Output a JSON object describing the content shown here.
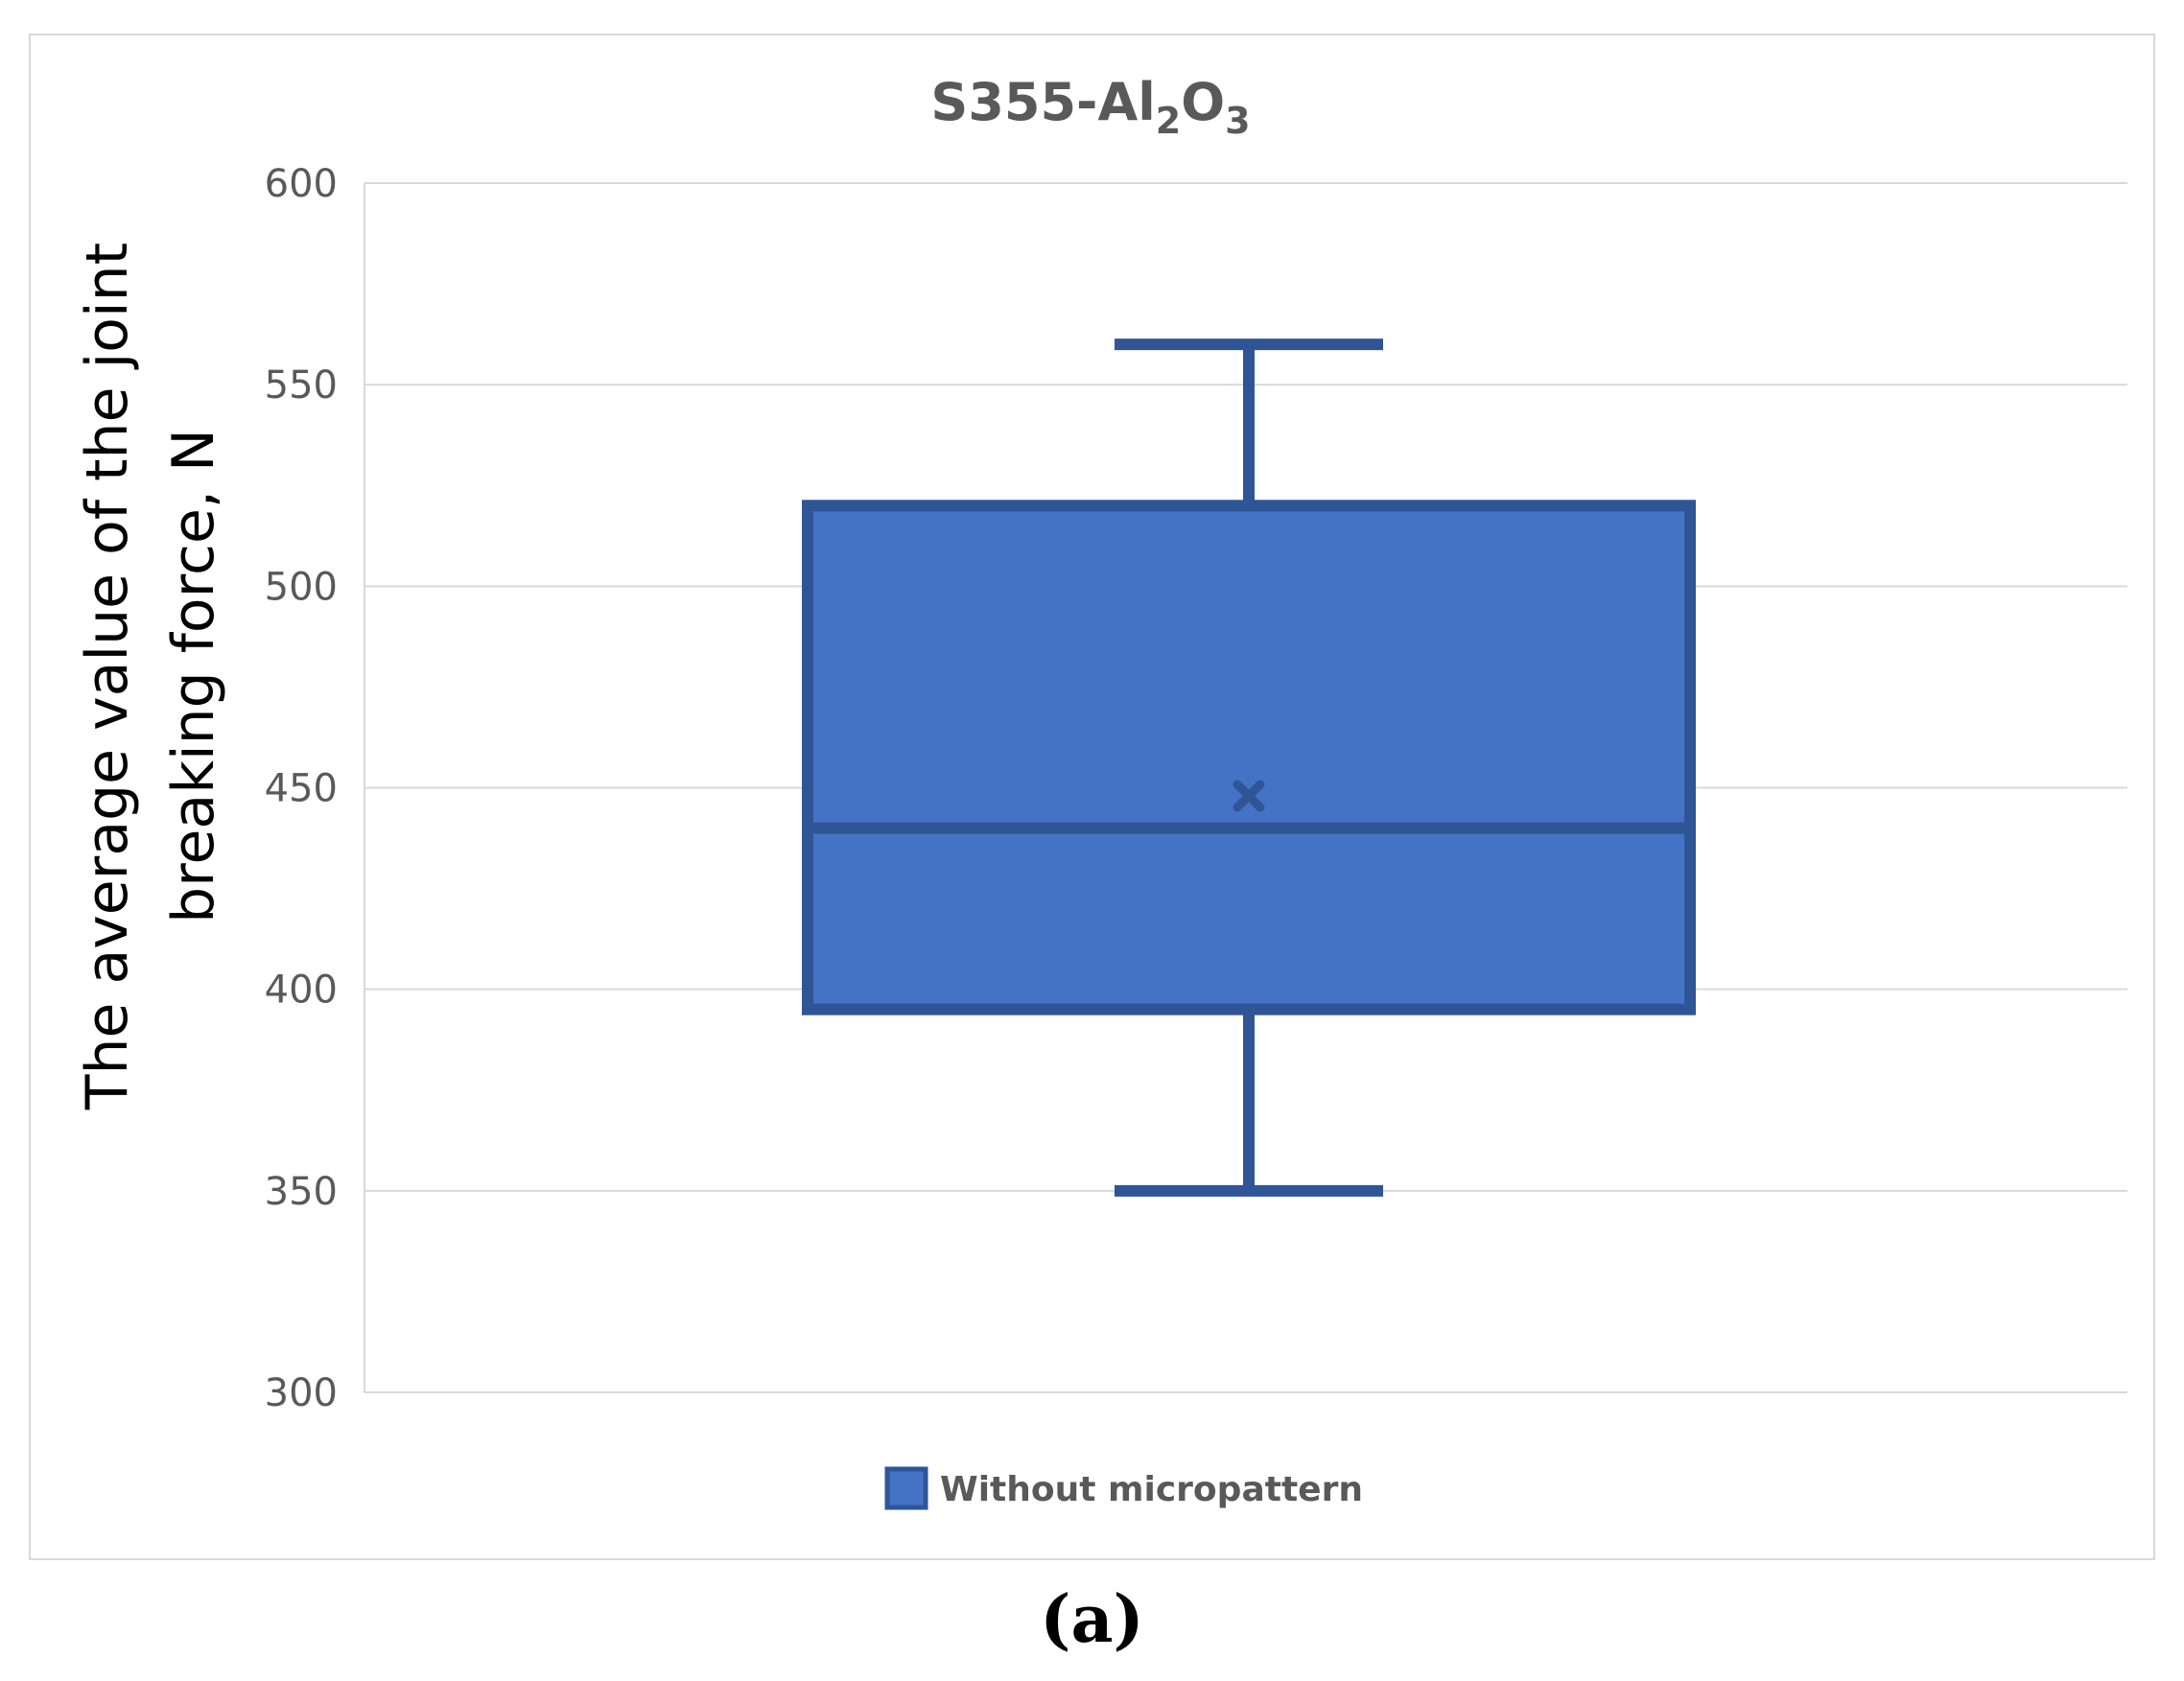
{
  "chart_data": {
    "type": "box",
    "title": {
      "main": "S355-Al",
      "sub1": "2",
      "mid": "O",
      "sub2": "3"
    },
    "ylabel_lines": [
      "The average value of the joint",
      "breaking force, N"
    ],
    "xlabel": "",
    "ylim": [
      300,
      600
    ],
    "yticks": [
      300,
      350,
      400,
      450,
      500,
      550,
      600
    ],
    "grid": true,
    "legend_position": "bottom",
    "series": [
      {
        "name": "Without micropattern",
        "min": 350,
        "q1": 395,
        "median": 440,
        "q3": 520,
        "max": 560,
        "mean": 448
      }
    ],
    "colors": {
      "box_fill": "#4472c4",
      "box_edge": "#2f5597",
      "grid": "#d9d9d9",
      "text": "#595959"
    }
  },
  "panel_label": "(a)"
}
